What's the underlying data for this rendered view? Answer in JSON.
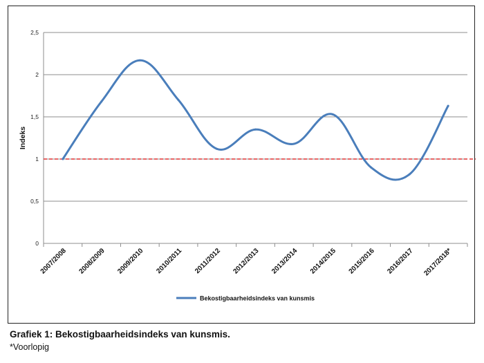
{
  "chart_data": {
    "type": "line",
    "ylabel": "Indeks",
    "xlabel": "",
    "ylim": [
      0,
      2.5
    ],
    "yticks": [
      "0",
      "0,5",
      "1",
      "1,5",
      "2",
      "2,5"
    ],
    "ytick_values": [
      0,
      0.5,
      1,
      1.5,
      2,
      2.5
    ],
    "categories": [
      "2007/2008",
      "2008/2009",
      "2009/2010",
      "2010/2011",
      "2011/2012",
      "2012/2013",
      "2013/2014",
      "2014/2015",
      "2015/2016",
      "2016/2017",
      "2017/2018*"
    ],
    "series": [
      {
        "name": "Bekostigbaarheidsindeks van kunsmis",
        "color": "#4a7ebb",
        "values": [
          1.0,
          1.68,
          2.17,
          1.7,
          1.12,
          1.35,
          1.18,
          1.53,
          0.9,
          0.82,
          1.63
        ]
      }
    ],
    "reference_line": {
      "value": 1.0,
      "color": "#e03030",
      "style": "dashed"
    },
    "grid": true,
    "legend_position": "bottom"
  },
  "caption": "Grafiek 1: Bekostigbaarheidsindeks van kunsmis.",
  "footnote": "*Voorlopig"
}
